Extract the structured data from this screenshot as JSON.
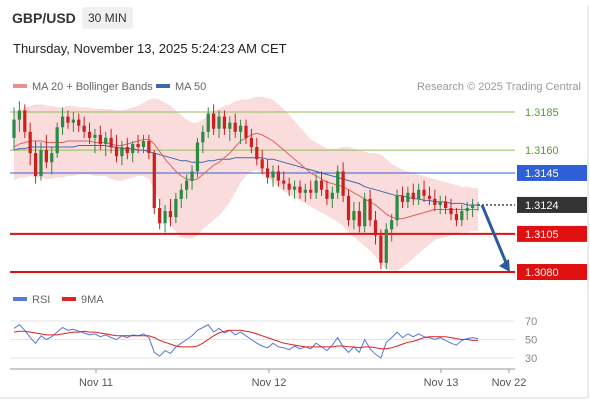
{
  "header": {
    "symbol": "GBP/USD",
    "timeframe": "30 MIN",
    "datetime": "Thursday, November 13, 2025 5:24:23 AM CET"
  },
  "legend": {
    "ma20_label": "MA 20 + Bollinger Bands",
    "ma50_label": "MA 50",
    "credit": "Research © 2025 Trading Central",
    "rsi_label": "RSI",
    "rsi_ma_label": "9MA"
  },
  "colors": {
    "bull": "#2d8a44",
    "bear": "#cc1f1f",
    "ma20": "#e06060",
    "ma50": "#3f6aa8",
    "band_fill": "#fbdcdc",
    "level_green": "#8fbe5a",
    "level_blue": "#2f5fd6",
    "level_red": "#e01010",
    "current": "#333333",
    "arrow": "#2b5b9c",
    "rsi": "#5577dd",
    "rsi_ma": "#dd2222"
  },
  "chart_data": [
    {
      "type": "candlestick",
      "title": "GBP/USD",
      "timeframe": "30 MIN",
      "ylim": [
        1.3075,
        1.3195
      ],
      "x_ticks": [
        "Nov 11",
        "Nov 12",
        "Nov 13",
        "Nov 22"
      ],
      "levels": [
        {
          "value": 1.3185,
          "label": "1.3185",
          "kind": "resistance",
          "color": "#8fbe5a"
        },
        {
          "value": 1.316,
          "label": "1.3160",
          "kind": "resistance",
          "color": "#8fbe5a"
        },
        {
          "value": 1.3145,
          "label": "1.3145",
          "kind": "pivot",
          "color": "#2f5fd6"
        },
        {
          "value": 1.3124,
          "label": "1.3124",
          "kind": "last",
          "color": "#333333"
        },
        {
          "value": 1.3105,
          "label": "1.3105",
          "kind": "support",
          "color": "#e01010"
        },
        {
          "value": 1.308,
          "label": "1.3080",
          "kind": "support",
          "color": "#e01010"
        }
      ],
      "arrow": {
        "from": 1.3124,
        "to": 1.308
      },
      "candles": [
        [
          1.3168,
          1.3188,
          1.316,
          1.318
        ],
        [
          1.318,
          1.3192,
          1.3172,
          1.3186
        ],
        [
          1.3186,
          1.319,
          1.3168,
          1.3172
        ],
        [
          1.3172,
          1.3178,
          1.315,
          1.3158
        ],
        [
          1.3158,
          1.3166,
          1.3138,
          1.3143
        ],
        [
          1.3143,
          1.3165,
          1.314,
          1.316
        ],
        [
          1.316,
          1.317,
          1.3148,
          1.3152
        ],
        [
          1.3152,
          1.3162,
          1.3144,
          1.3158
        ],
        [
          1.3158,
          1.3178,
          1.3155,
          1.3175
        ],
        [
          1.3175,
          1.3188,
          1.317,
          1.3182
        ],
        [
          1.3182,
          1.3186,
          1.3174,
          1.3178
        ],
        [
          1.3178,
          1.3185,
          1.3172,
          1.318
        ],
        [
          1.318,
          1.3184,
          1.3172,
          1.3176
        ],
        [
          1.3176,
          1.3182,
          1.3168,
          1.3172
        ],
        [
          1.3172,
          1.3178,
          1.3164,
          1.3168
        ],
        [
          1.3168,
          1.3174,
          1.3158,
          1.317
        ],
        [
          1.317,
          1.3176,
          1.316,
          1.3164
        ],
        [
          1.3164,
          1.3172,
          1.3156,
          1.3168
        ],
        [
          1.3168,
          1.3174,
          1.3158,
          1.3162
        ],
        [
          1.3162,
          1.317,
          1.3152,
          1.3156
        ],
        [
          1.3156,
          1.3166,
          1.315,
          1.3162
        ],
        [
          1.3162,
          1.3168,
          1.3154,
          1.3158
        ],
        [
          1.3158,
          1.3166,
          1.3152,
          1.3164
        ],
        [
          1.3164,
          1.317,
          1.3158,
          1.3162
        ],
        [
          1.3162,
          1.317,
          1.3158,
          1.3166
        ],
        [
          1.3166,
          1.317,
          1.3154,
          1.3158
        ],
        [
          1.3158,
          1.316,
          1.3118,
          1.3122
        ],
        [
          1.3122,
          1.3128,
          1.3108,
          1.3112
        ],
        [
          1.3112,
          1.3124,
          1.3106,
          1.312
        ],
        [
          1.312,
          1.3128,
          1.311,
          1.3116
        ],
        [
          1.3116,
          1.3132,
          1.3112,
          1.3128
        ],
        [
          1.3128,
          1.3138,
          1.3122,
          1.3134
        ],
        [
          1.3134,
          1.3144,
          1.3128,
          1.314
        ],
        [
          1.314,
          1.315,
          1.3134,
          1.3146
        ],
        [
          1.3146,
          1.3168,
          1.3142,
          1.3165
        ],
        [
          1.3165,
          1.3176,
          1.3158,
          1.3172
        ],
        [
          1.3172,
          1.3188,
          1.3168,
          1.3184
        ],
        [
          1.3184,
          1.319,
          1.317,
          1.3174
        ],
        [
          1.3174,
          1.3186,
          1.3168,
          1.3182
        ],
        [
          1.3182,
          1.3186,
          1.317,
          1.3174
        ],
        [
          1.3174,
          1.3182,
          1.3166,
          1.3178
        ],
        [
          1.3178,
          1.3184,
          1.3168,
          1.3172
        ],
        [
          1.3172,
          1.318,
          1.3164,
          1.3176
        ],
        [
          1.3176,
          1.318,
          1.3164,
          1.3168
        ],
        [
          1.3168,
          1.3174,
          1.3158,
          1.3162
        ],
        [
          1.3162,
          1.3168,
          1.315,
          1.3154
        ],
        [
          1.3154,
          1.316,
          1.3144,
          1.3148
        ],
        [
          1.3148,
          1.3154,
          1.3138,
          1.3142
        ],
        [
          1.3142,
          1.315,
          1.3136,
          1.3146
        ],
        [
          1.3146,
          1.315,
          1.3136,
          1.314
        ],
        [
          1.314,
          1.3146,
          1.3134,
          1.3138
        ],
        [
          1.3138,
          1.3142,
          1.313,
          1.3134
        ],
        [
          1.3134,
          1.314,
          1.3128,
          1.3136
        ],
        [
          1.3136,
          1.314,
          1.3128,
          1.3132
        ],
        [
          1.3132,
          1.3138,
          1.3126,
          1.3134
        ],
        [
          1.3134,
          1.314,
          1.3128,
          1.3132
        ],
        [
          1.3132,
          1.3144,
          1.3128,
          1.314
        ],
        [
          1.314,
          1.3146,
          1.313,
          1.3134
        ],
        [
          1.3134,
          1.314,
          1.3124,
          1.3128
        ],
        [
          1.3128,
          1.3136,
          1.3122,
          1.3132
        ],
        [
          1.3132,
          1.315,
          1.3128,
          1.3146
        ],
        [
          1.3146,
          1.3152,
          1.3126,
          1.313
        ],
        [
          1.313,
          1.3134,
          1.311,
          1.3114
        ],
        [
          1.3114,
          1.3126,
          1.3108,
          1.312
        ],
        [
          1.312,
          1.3126,
          1.3106,
          1.311
        ],
        [
          1.311,
          1.3132,
          1.3106,
          1.3128
        ],
        [
          1.3128,
          1.3134,
          1.311,
          1.3114
        ],
        [
          1.3114,
          1.312,
          1.3098,
          1.3104
        ],
        [
          1.3104,
          1.3108,
          1.3082,
          1.3086
        ],
        [
          1.3086,
          1.3112,
          1.3082,
          1.3108
        ],
        [
          1.3108,
          1.3118,
          1.31,
          1.3114
        ],
        [
          1.3114,
          1.3134,
          1.311,
          1.313
        ],
        [
          1.313,
          1.3136,
          1.3122,
          1.3126
        ],
        [
          1.3126,
          1.3136,
          1.3122,
          1.3132
        ],
        [
          1.3132,
          1.3138,
          1.3124,
          1.3128
        ],
        [
          1.3128,
          1.3138,
          1.3124,
          1.3134
        ],
        [
          1.3134,
          1.314,
          1.3126,
          1.313
        ],
        [
          1.313,
          1.3136,
          1.3124,
          1.3128
        ],
        [
          1.3128,
          1.3134,
          1.312,
          1.3124
        ],
        [
          1.3124,
          1.313,
          1.3118,
          1.3126
        ],
        [
          1.3126,
          1.313,
          1.3118,
          1.3122
        ],
        [
          1.3122,
          1.3128,
          1.3114,
          1.3118
        ],
        [
          1.3118,
          1.3122,
          1.311,
          1.3114
        ],
        [
          1.3114,
          1.3124,
          1.311,
          1.312
        ],
        [
          1.312,
          1.3126,
          1.3114,
          1.3122
        ],
        [
          1.3122,
          1.3128,
          1.3116,
          1.3124
        ],
        [
          1.3124,
          1.3126,
          1.312,
          1.3124
        ]
      ],
      "ma20": [
        1.3162,
        1.3164,
        1.3165,
        1.3166,
        1.3166,
        1.3166,
        1.3165,
        1.3165,
        1.3165,
        1.3165,
        1.3166,
        1.3166,
        1.3166,
        1.3166,
        1.3166,
        1.3165,
        1.3165,
        1.3165,
        1.3164,
        1.3163,
        1.3163,
        1.3164,
        1.3165,
        1.3166,
        1.3167,
        1.3167,
        1.3164,
        1.3159,
        1.3154,
        1.315,
        1.3146,
        1.3143,
        1.3141,
        1.314,
        1.3141,
        1.3144,
        1.3147,
        1.315,
        1.3152,
        1.3155,
        1.3158,
        1.3162,
        1.3166,
        1.3168,
        1.317,
        1.3171,
        1.317,
        1.3168,
        1.3166,
        1.3163,
        1.316,
        1.3157,
        1.3154,
        1.3151,
        1.3148,
        1.3145,
        1.3143,
        1.3141,
        1.3139,
        1.3138,
        1.3137,
        1.3136,
        1.3134,
        1.3132,
        1.313,
        1.3128,
        1.3126,
        1.3124,
        1.3121,
        1.3118,
        1.3116,
        1.3115,
        1.3115,
        1.3116,
        1.3117,
        1.3118,
        1.3119,
        1.312,
        1.3121,
        1.3121,
        1.3121,
        1.3121,
        1.3121,
        1.3121,
        1.3121,
        1.3121,
        1.3121
      ],
      "ma50": [
        1.316,
        1.3161,
        1.3161,
        1.3162,
        1.3162,
        1.3162,
        1.3162,
        1.3162,
        1.3162,
        1.3162,
        1.3162,
        1.3162,
        1.3163,
        1.3163,
        1.3163,
        1.3163,
        1.3163,
        1.3163,
        1.3162,
        1.3162,
        1.3161,
        1.3161,
        1.3161,
        1.316,
        1.316,
        1.3159,
        1.3158,
        1.3157,
        1.3156,
        1.3155,
        1.3154,
        1.3153,
        1.3153,
        1.3152,
        1.3152,
        1.3152,
        1.3153,
        1.3153,
        1.3154,
        1.3154,
        1.3154,
        1.3155,
        1.3155,
        1.3155,
        1.3155,
        1.3155,
        1.3155,
        1.3154,
        1.3154,
        1.3153,
        1.3152,
        1.3151,
        1.315,
        1.3149,
        1.3148,
        1.3147,
        1.3146,
        1.3145,
        1.3144,
        1.3143,
        1.3142,
        1.3141,
        1.314,
        1.3139,
        1.3138,
        1.3136,
        1.3135,
        1.3134,
        1.3133,
        1.3132,
        1.3131,
        1.313,
        1.313,
        1.3129,
        1.3128,
        1.3128,
        1.3127,
        1.3127,
        1.3126,
        1.3126,
        1.3126,
        1.3125,
        1.3125,
        1.3125,
        1.3124,
        1.3124,
        1.3124
      ],
      "bb_width": [
        0.0022,
        0.0022,
        0.0023,
        0.0023,
        0.0024,
        0.0024,
        0.0024,
        0.0024,
        0.0023,
        0.0023,
        0.0023,
        0.0023,
        0.0022,
        0.0022,
        0.0022,
        0.0022,
        0.0022,
        0.0022,
        0.0023,
        0.0023,
        0.0023,
        0.0023,
        0.0023,
        0.0023,
        0.0024,
        0.0026,
        0.003,
        0.0034,
        0.0037,
        0.0039,
        0.004,
        0.004,
        0.0039,
        0.0038,
        0.0037,
        0.0036,
        0.0036,
        0.0036,
        0.0035,
        0.0034,
        0.0032,
        0.003,
        0.0027,
        0.0025,
        0.0024,
        0.0024,
        0.0025,
        0.0026,
        0.0027,
        0.0027,
        0.0027,
        0.0026,
        0.0025,
        0.0024,
        0.0023,
        0.0022,
        0.0022,
        0.0022,
        0.0022,
        0.0023,
        0.0024,
        0.0026,
        0.0028,
        0.0029,
        0.003,
        0.0031,
        0.0032,
        0.0034,
        0.0036,
        0.0036,
        0.0035,
        0.0034,
        0.0032,
        0.003,
        0.0028,
        0.0026,
        0.0024,
        0.0022,
        0.002,
        0.0019,
        0.0018,
        0.0017,
        0.0016,
        0.0015,
        0.0015,
        0.0014,
        0.0014
      ]
    },
    {
      "type": "line",
      "title": "RSI",
      "ylim": [
        25,
        75
      ],
      "y_ticks": [
        70,
        50,
        30
      ],
      "series": [
        {
          "name": "RSI",
          "color": "#5577dd",
          "values": [
            62,
            66,
            60,
            52,
            46,
            54,
            50,
            53,
            58,
            63,
            60,
            61,
            59,
            57,
            55,
            56,
            53,
            55,
            52,
            50,
            54,
            52,
            55,
            54,
            56,
            52,
            36,
            32,
            38,
            35,
            42,
            46,
            50,
            54,
            60,
            63,
            66,
            58,
            62,
            57,
            60,
            55,
            58,
            54,
            50,
            46,
            43,
            41,
            46,
            42,
            41,
            39,
            43,
            40,
            42,
            40,
            46,
            42,
            38,
            44,
            52,
            42,
            36,
            42,
            36,
            50,
            40,
            34,
            30,
            47,
            52,
            58,
            52,
            56,
            53,
            56,
            53,
            52,
            50,
            52,
            49,
            46,
            44,
            49,
            51,
            52,
            51
          ]
        },
        {
          "name": "9MA",
          "color": "#dd2222",
          "values": [
            58,
            59,
            59,
            58,
            57,
            56,
            55,
            55,
            55,
            56,
            57,
            58,
            58,
            59,
            58,
            58,
            57,
            56,
            55,
            54,
            54,
            54,
            54,
            54,
            54,
            54,
            52,
            49,
            47,
            45,
            43,
            42,
            42,
            42,
            43,
            46,
            50,
            54,
            57,
            59,
            60,
            60,
            60,
            59,
            58,
            56,
            54,
            52,
            50,
            48,
            46,
            45,
            44,
            43,
            42,
            42,
            42,
            42,
            42,
            42,
            43,
            43,
            42,
            42,
            41,
            42,
            42,
            41,
            40,
            40,
            41,
            43,
            45,
            47,
            48,
            50,
            52,
            53,
            53,
            53,
            53,
            52,
            51,
            50,
            50,
            49,
            49
          ]
        }
      ]
    }
  ]
}
